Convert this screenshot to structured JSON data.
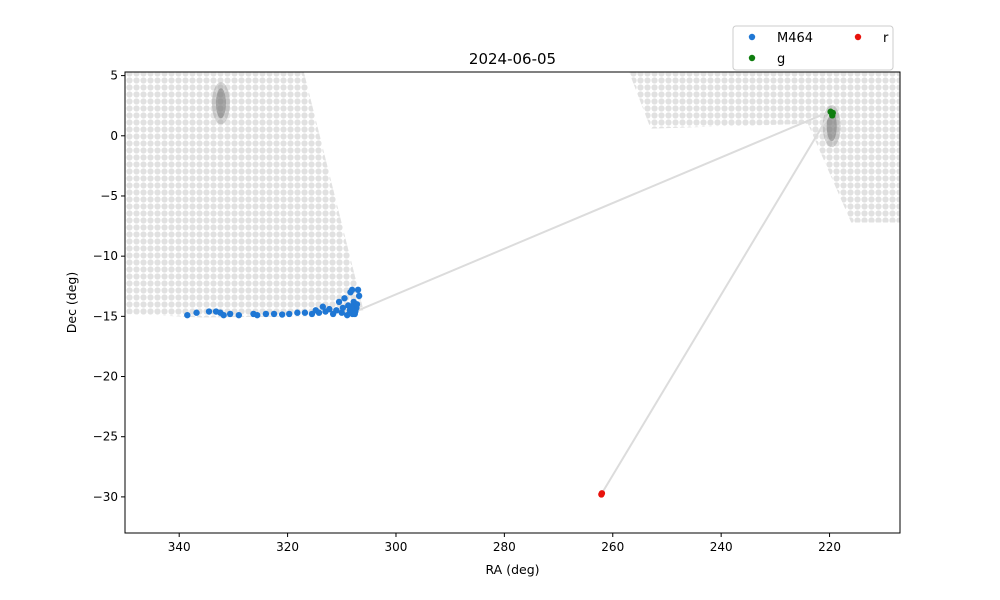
{
  "chart_data": {
    "type": "scatter",
    "title": "2024-06-05",
    "xlabel": "RA (deg)",
    "ylabel": "Dec (deg)",
    "xlim": [
      350,
      207
    ],
    "ylim": [
      -33,
      5.3
    ],
    "x_inverted": true,
    "x_ticks": [
      340,
      320,
      300,
      280,
      260,
      240,
      220
    ],
    "y_ticks": [
      5,
      0,
      -5,
      -10,
      -15,
      -20,
      -25,
      -30
    ],
    "grid": false,
    "legend_position": "top-right, above plot",
    "legend_columns": 2,
    "footprint": {
      "color": "#c8c8c8",
      "fields": [
        {
          "polygon": [
            [
              350,
              5.3
            ],
            [
              317,
              5.3
            ],
            [
              306,
              -14.5
            ],
            [
              315,
              -15
            ],
            [
              336,
              -15.1
            ],
            [
              350,
              -14.8
            ]
          ]
        },
        {
          "polygon": [
            [
              257,
              5.3
            ],
            [
              207,
              5.3
            ],
            [
              207,
              -7.2
            ],
            [
              216,
              -7.2
            ],
            [
              224,
              1.0
            ],
            [
              253,
              0.6
            ]
          ]
        }
      ],
      "galaxy_blobs": [
        {
          "ra": 332.3,
          "dec": 2.7
        },
        {
          "ra": 219.6,
          "dec": 0.8
        }
      ]
    },
    "track_segments": {
      "color": "#dcdcdc",
      "lines": [
        [
          [
            307.5,
            -14.6
          ],
          [
            220.0,
            2.0
          ]
        ],
        [
          [
            220.0,
            1.8
          ],
          [
            262.0,
            -29.7
          ]
        ]
      ]
    },
    "series": [
      {
        "name": "M464",
        "color": "#1f77d4",
        "points": [
          [
            338.5,
            -14.9
          ],
          [
            336.8,
            -14.7
          ],
          [
            334.5,
            -14.6
          ],
          [
            333.2,
            -14.6
          ],
          [
            332.4,
            -14.7
          ],
          [
            331.8,
            -14.9
          ],
          [
            330.6,
            -14.8
          ],
          [
            329.0,
            -14.9
          ],
          [
            326.3,
            -14.8
          ],
          [
            325.6,
            -14.9
          ],
          [
            324.0,
            -14.8
          ],
          [
            322.5,
            -14.8
          ],
          [
            321.0,
            -14.85
          ],
          [
            319.7,
            -14.8
          ],
          [
            318.2,
            -14.7
          ],
          [
            316.8,
            -14.7
          ],
          [
            315.5,
            -14.8
          ],
          [
            314.8,
            -14.5
          ],
          [
            314.2,
            -14.7
          ],
          [
            313.5,
            -14.2
          ],
          [
            313.0,
            -14.6
          ],
          [
            312.3,
            -14.4
          ],
          [
            311.6,
            -14.8
          ],
          [
            311.0,
            -14.5
          ],
          [
            310.5,
            -13.8
          ],
          [
            310.0,
            -14.7
          ],
          [
            309.8,
            -14.3
          ],
          [
            309.5,
            -13.5
          ],
          [
            309.0,
            -14.9
          ],
          [
            308.8,
            -14.1
          ],
          [
            308.5,
            -14.5
          ],
          [
            308.4,
            -13.0
          ],
          [
            308.1,
            -12.8
          ],
          [
            308.0,
            -14.8
          ],
          [
            307.8,
            -13.8
          ],
          [
            307.5,
            -14.6
          ],
          [
            307.3,
            -14.3
          ],
          [
            307.2,
            -14.0
          ],
          [
            307.0,
            -12.8
          ],
          [
            306.8,
            -13.3
          ],
          [
            307.6,
            -14.8
          ],
          [
            308.2,
            -14.2
          ]
        ]
      },
      {
        "name": "g",
        "color": "#0f7d0f",
        "points": [
          [
            219.8,
            2.0
          ],
          [
            219.5,
            1.7
          ],
          [
            219.4,
            1.9
          ]
        ]
      },
      {
        "name": "r",
        "color": "#e8120c",
        "points": [
          [
            262.0,
            -29.7
          ],
          [
            262.1,
            -29.8
          ]
        ]
      }
    ]
  }
}
